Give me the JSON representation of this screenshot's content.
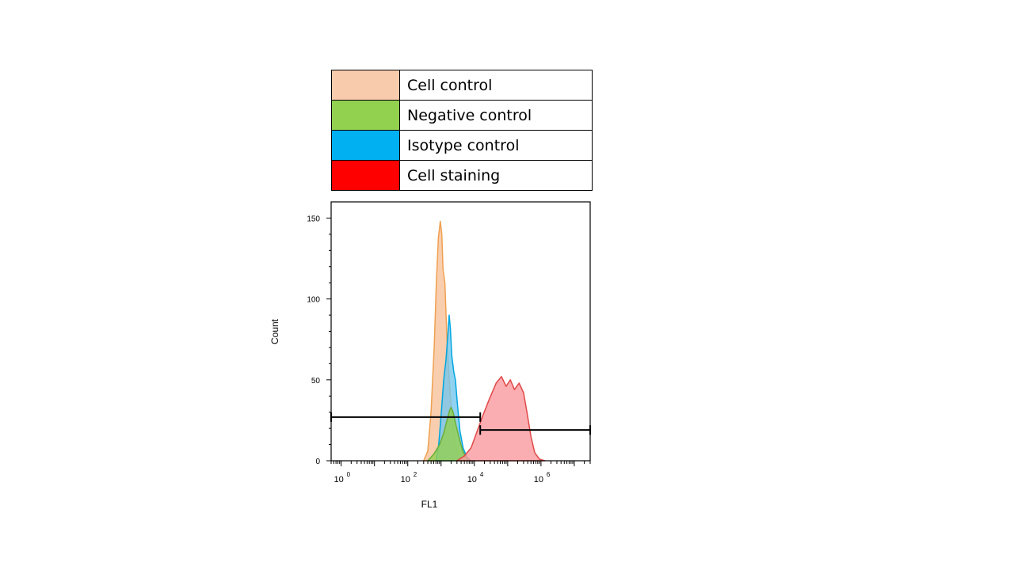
{
  "legend": [
    {
      "label": "Cell control",
      "color": "#F8CBAD"
    },
    {
      "label": "Negative control",
      "color": "#92D050"
    },
    {
      "label": "Isotype control",
      "color": "#00B0F0"
    },
    {
      "label": "Cell staining",
      "color": "#FF0000"
    }
  ],
  "chart_data": {
    "type": "area",
    "title": "",
    "xlabel": "FL1",
    "ylabel": "Count",
    "x_scale": "log",
    "xlim": [
      0.5,
      30000000
    ],
    "ylim": [
      0,
      160
    ],
    "y_ticks": [
      0,
      50,
      100,
      150
    ],
    "x_ticks": [
      {
        "value": 1,
        "base": "10",
        "exp": "0"
      },
      {
        "value": 100,
        "base": "10",
        "exp": "2"
      },
      {
        "value": 10000,
        "base": "10",
        "exp": "4"
      },
      {
        "value": 1000000,
        "base": "10",
        "exp": "6"
      }
    ],
    "series": [
      {
        "name": "Cell control",
        "fill": "#F6C29A",
        "stroke": "#F0A050",
        "points": [
          [
            300,
            0
          ],
          [
            400,
            6
          ],
          [
            500,
            30
          ],
          [
            620,
            70
          ],
          [
            720,
            110
          ],
          [
            830,
            138
          ],
          [
            950,
            148
          ],
          [
            1050,
            140
          ],
          [
            1150,
            118
          ],
          [
            1300,
            110
          ],
          [
            1500,
            75
          ],
          [
            1700,
            55
          ],
          [
            1900,
            40
          ],
          [
            2200,
            25
          ],
          [
            2600,
            12
          ],
          [
            3200,
            4
          ],
          [
            4000,
            0
          ]
        ]
      },
      {
        "name": "Isotype control",
        "fill": "#74C7EC",
        "stroke": "#00A6E0",
        "points": [
          [
            700,
            0
          ],
          [
            850,
            10
          ],
          [
            1000,
            28
          ],
          [
            1200,
            50
          ],
          [
            1400,
            62
          ],
          [
            1600,
            78
          ],
          [
            1750,
            90
          ],
          [
            1900,
            82
          ],
          [
            2100,
            65
          ],
          [
            2400,
            55
          ],
          [
            2700,
            50
          ],
          [
            3100,
            35
          ],
          [
            3700,
            18
          ],
          [
            4600,
            8
          ],
          [
            6000,
            2
          ],
          [
            8000,
            0
          ]
        ]
      },
      {
        "name": "Negative control",
        "fill": "#92D050",
        "stroke": "#6AAF3A",
        "points": [
          [
            400,
            0
          ],
          [
            600,
            4
          ],
          [
            900,
            10
          ],
          [
            1200,
            17
          ],
          [
            1500,
            25
          ],
          [
            1800,
            31
          ],
          [
            2000,
            33
          ],
          [
            2300,
            30
          ],
          [
            2800,
            22
          ],
          [
            3500,
            14
          ],
          [
            4500,
            6
          ],
          [
            6000,
            1
          ],
          [
            8000,
            0
          ]
        ]
      },
      {
        "name": "Cell staining",
        "fill": "#FA9A9E",
        "stroke": "#E04848",
        "points": [
          [
            3000,
            0
          ],
          [
            5000,
            3
          ],
          [
            8000,
            8
          ],
          [
            12000,
            18
          ],
          [
            18000,
            28
          ],
          [
            28000,
            38
          ],
          [
            45000,
            48
          ],
          [
            65000,
            52
          ],
          [
            90000,
            46
          ],
          [
            120000,
            50
          ],
          [
            160000,
            44
          ],
          [
            220000,
            48
          ],
          [
            300000,
            42
          ],
          [
            380000,
            30
          ],
          [
            500000,
            15
          ],
          [
            650000,
            5
          ],
          [
            900000,
            1
          ],
          [
            1300000,
            0
          ]
        ]
      }
    ],
    "gates": [
      {
        "x0": 0.5,
        "x1": 15000,
        "y": 27
      },
      {
        "x0": 15000,
        "x1": 30000000,
        "y": 19
      }
    ]
  }
}
